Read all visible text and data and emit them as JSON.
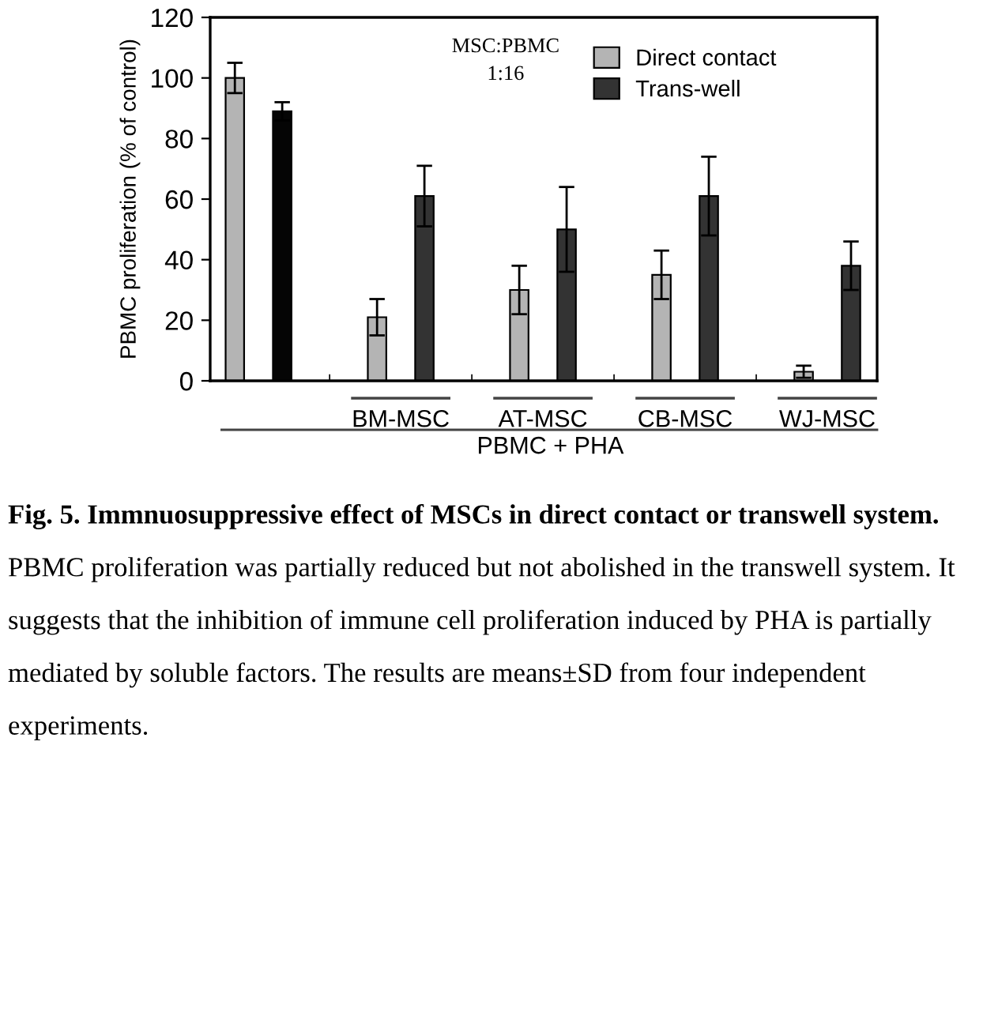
{
  "chart_data": {
    "type": "bar",
    "categories": [
      null,
      "BM-MSC",
      "AT-MSC",
      "CB-MSC",
      "WJ-MSC"
    ],
    "series": [
      {
        "name": "Direct contact",
        "color": "#b4b4b4",
        "values": [
          100,
          21,
          30,
          35,
          3
        ],
        "errors": [
          5,
          6,
          8,
          8,
          2
        ]
      },
      {
        "name": "Trans-well",
        "color": "#333333",
        "colors": [
          "#050505",
          "#333333",
          "#333333",
          "#333333",
          "#333333"
        ],
        "values": [
          89,
          61,
          50,
          61,
          38
        ],
        "errors": [
          3,
          10,
          14,
          13,
          8
        ]
      }
    ],
    "ylim": [
      0,
      120
    ],
    "yticks": [
      0,
      20,
      40,
      60,
      80,
      100,
      120
    ],
    "ylabel": "PBMC proliferation (% of control)",
    "xlabel": "PBMC + PHA",
    "legend": "top right",
    "grid": false,
    "annotations": [
      "MSC:PBMC\n1:16",
      "Fig. 5. Immnuosuppressive effect of MSCs in direct contact or transwell system.",
      "PBMC proliferation was partially reduced but not abolished in the transwell system. It suggests that the inhibition of immune cell proliferation induced by PHA is partially mediated by soluble factors. The results are means±SD from four independent experiments."
    ]
  }
}
